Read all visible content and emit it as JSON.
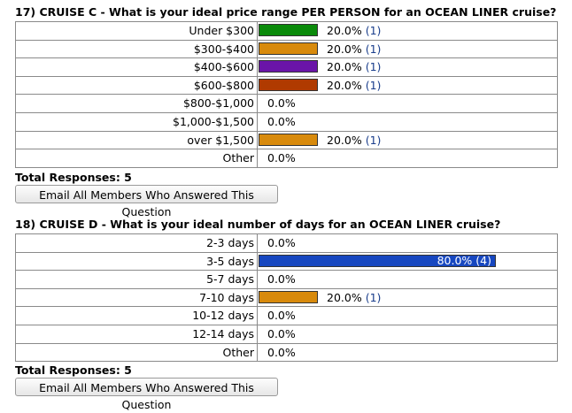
{
  "questions": [
    {
      "number": "17)",
      "title": "CRUISE C - What is your ideal price range PER PERSON for an OCEAN LINER cruise?",
      "options": [
        {
          "label": "Under $300",
          "percent": "20.0%",
          "count": "(1)",
          "value": 20.0,
          "color": "#0a8a0a"
        },
        {
          "label": "$300-$400",
          "percent": "20.0%",
          "count": "(1)",
          "value": 20.0,
          "color": "#d88a0c"
        },
        {
          "label": "$400-$600",
          "percent": "20.0%",
          "count": "(1)",
          "value": 20.0,
          "color": "#6a14a8"
        },
        {
          "label": "$600-$800",
          "percent": "20.0%",
          "count": "(1)",
          "value": 20.0,
          "color": "#b03a00"
        },
        {
          "label": "$800-$1,000",
          "percent": "0.0%",
          "count": "",
          "value": 0,
          "color": ""
        },
        {
          "label": "$1,000-$1,500",
          "percent": "0.0%",
          "count": "",
          "value": 0,
          "color": ""
        },
        {
          "label": "over $1,500",
          "percent": "20.0%",
          "count": "(1)",
          "value": 20.0,
          "color": "#d88a0c"
        },
        {
          "label": "Other",
          "percent": "0.0%",
          "count": "",
          "value": 0,
          "color": ""
        }
      ],
      "total_responses": "Total Responses: 5",
      "email_button": "Email All Members Who Answered This Question"
    },
    {
      "number": "18)",
      "title": "CRUISE D - What is your ideal number of days for an OCEAN LINER cruise?",
      "options": [
        {
          "label": "2-3 days",
          "percent": "0.0%",
          "count": "",
          "value": 0,
          "color": ""
        },
        {
          "label": "3-5 days",
          "percent": "80.0%",
          "count": "(4)",
          "value": 80.0,
          "color": "#1747c0"
        },
        {
          "label": "5-7 days",
          "percent": "0.0%",
          "count": "",
          "value": 0,
          "color": ""
        },
        {
          "label": "7-10 days",
          "percent": "20.0%",
          "count": "(1)",
          "value": 20.0,
          "color": "#d88a0c"
        },
        {
          "label": "10-12 days",
          "percent": "0.0%",
          "count": "",
          "value": 0,
          "color": ""
        },
        {
          "label": "12-14 days",
          "percent": "0.0%",
          "count": "",
          "value": 0,
          "color": ""
        },
        {
          "label": "Other",
          "percent": "0.0%",
          "count": "",
          "value": 0,
          "color": ""
        }
      ],
      "total_responses": "Total Responses: 5",
      "email_button": "Email All Members Who Answered This Question"
    }
  ]
}
